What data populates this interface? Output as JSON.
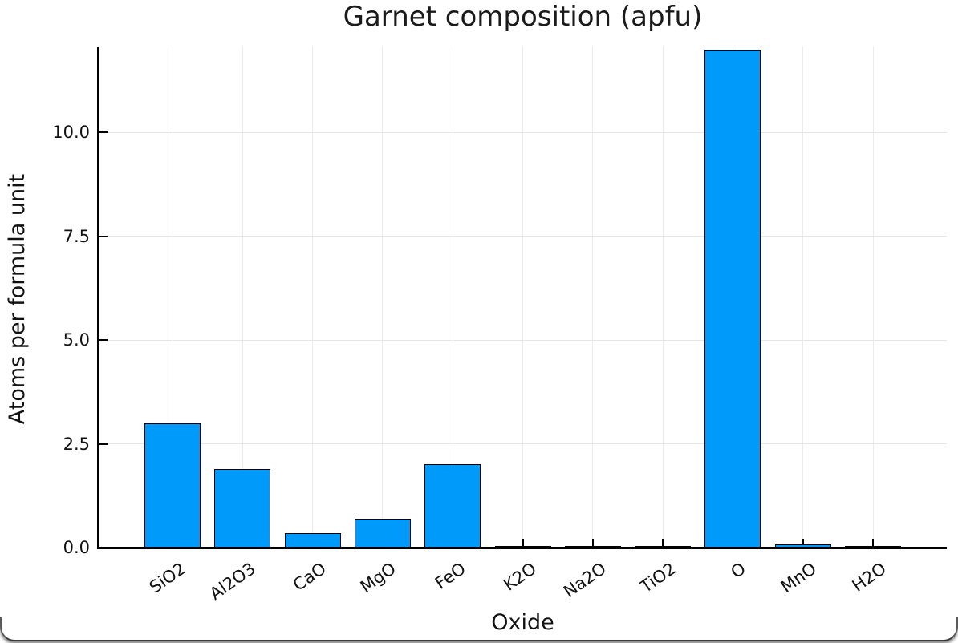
{
  "window": {
    "background": "#ffffff",
    "frame_color": "#5a5a5a"
  },
  "chart_data": {
    "type": "bar",
    "title": "Garnet composition (apfu)",
    "xlabel": "Oxide",
    "ylabel": "Atoms per formula unit",
    "categories": [
      "SiO2",
      "Al2O3",
      "CaO",
      "MgO",
      "FeO",
      "K2O",
      "Na2O",
      "TiO2",
      "O",
      "MnO",
      "H2O"
    ],
    "values": [
      3.0,
      1.9,
      0.35,
      0.7,
      2.0,
      0.01,
      0.02,
      0.02,
      12.0,
      0.08,
      0.02
    ],
    "ylim": [
      0,
      12.07
    ],
    "yticks": [
      0.0,
      2.5,
      5.0,
      7.5,
      10.0
    ],
    "ytick_labels": [
      "0.0",
      "2.5",
      "5.0",
      "7.5",
      "10.0"
    ],
    "xtick_rotation_deg": -35,
    "grid": true,
    "legend": "none",
    "bar_color": "#009AFA",
    "bar_edge_color": "#000000",
    "grid_color": "#e6e6e6",
    "axis_color": "#000000",
    "text_color": "#1a1a1a"
  }
}
